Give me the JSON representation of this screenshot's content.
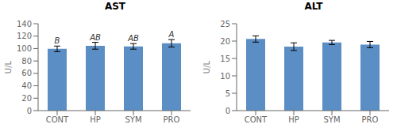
{
  "chart_data": [
    {
      "type": "bar",
      "title": "AST",
      "categories": [
        "CONT",
        "HP",
        "SYM",
        "PRO"
      ],
      "values": [
        99.5,
        104.5,
        103.5,
        108.5
      ],
      "errors": [
        4.5,
        5.5,
        4.5,
        6.0
      ],
      "annotations": [
        "B",
        "AB",
        "AB",
        "A"
      ],
      "y_label": "U/L",
      "ylim": [
        0,
        140
      ],
      "yticks": [
        0,
        20,
        40,
        60,
        80,
        100,
        120,
        140
      ],
      "color": "#5b8ec4",
      "grid": false
    },
    {
      "type": "bar",
      "title": "ALT",
      "categories": [
        "CONT",
        "HP",
        "SYM",
        "PRO"
      ],
      "values": [
        20.6,
        18.4,
        19.6,
        19.0
      ],
      "errors": [
        0.9,
        1.1,
        0.6,
        0.9
      ],
      "y_label": "U/L",
      "ylim": [
        0,
        25
      ],
      "yticks": [
        0,
        5,
        10,
        15,
        20,
        25
      ],
      "color": "#5b8ec4",
      "grid": false
    }
  ]
}
